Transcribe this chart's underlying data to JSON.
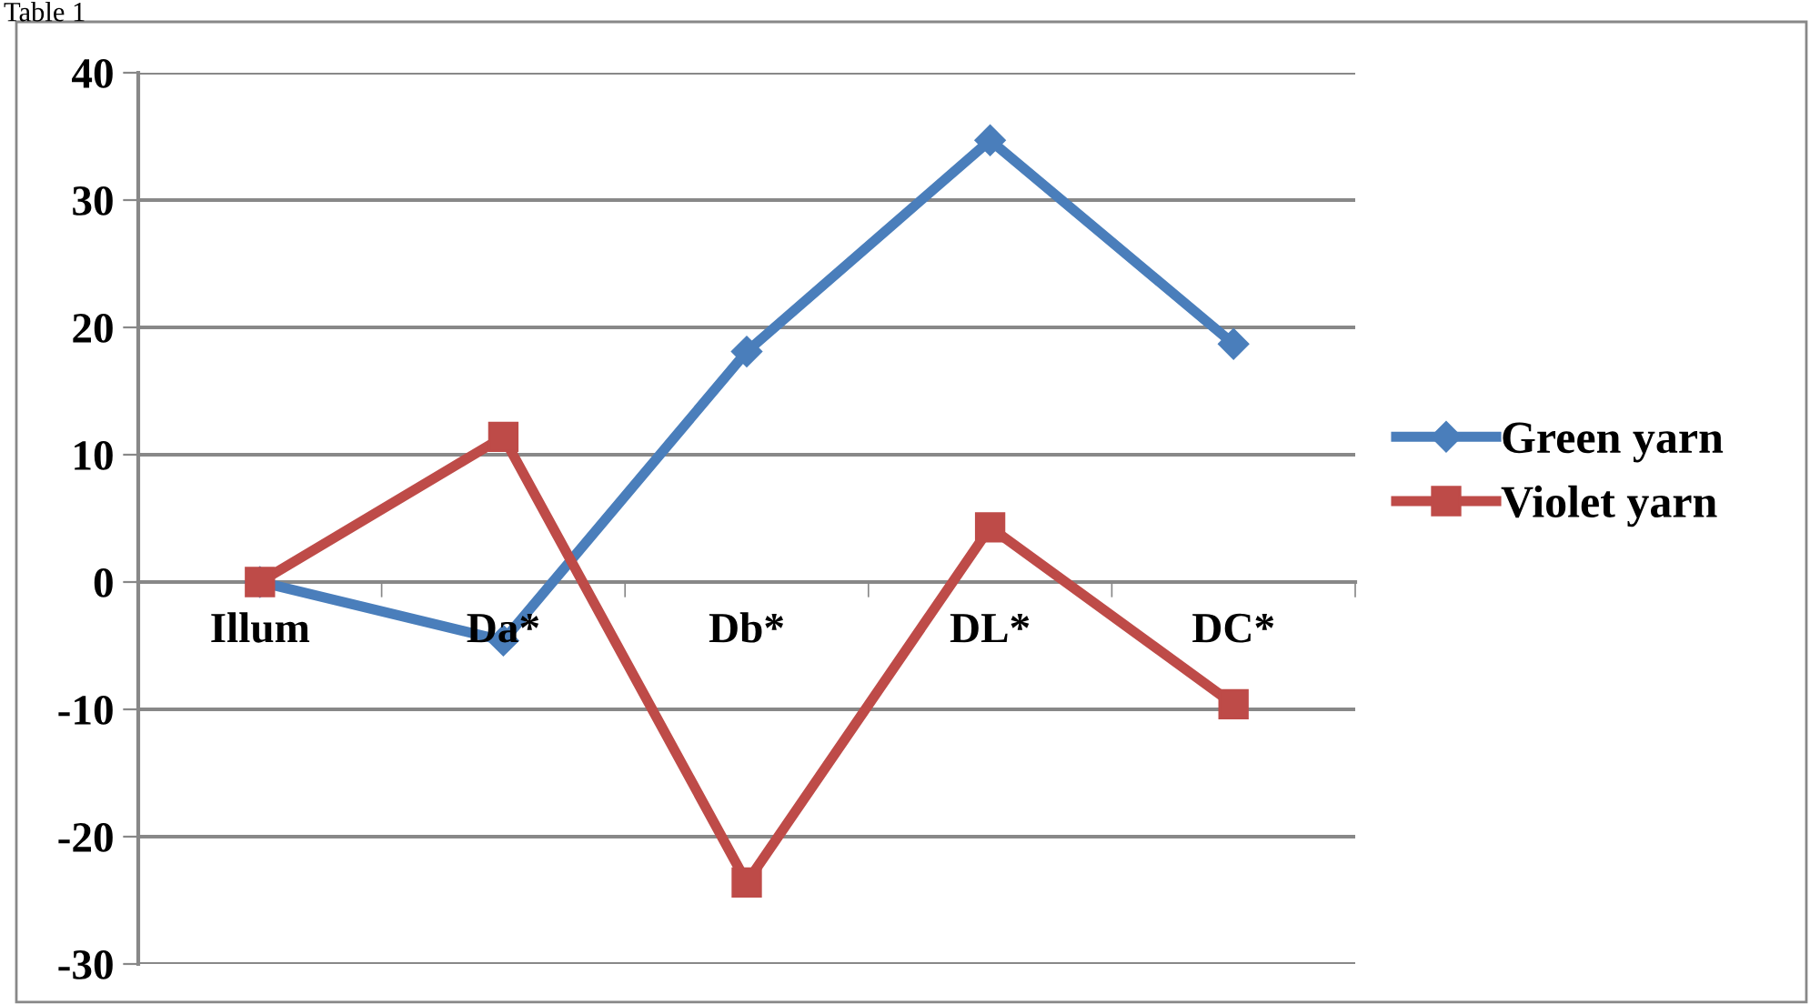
{
  "chart_data": {
    "type": "line",
    "categories": [
      "Illum",
      "Da*",
      "Db*",
      "DL*",
      "DC*"
    ],
    "series": [
      {
        "name": "Green yarn",
        "color": "#4a7ebb",
        "marker": "diamond",
        "values": [
          0,
          -4.6,
          18.1,
          34.7,
          18.7
        ]
      },
      {
        "name": "Violet yarn",
        "color": "#be4b48",
        "marker": "square",
        "values": [
          0,
          11.4,
          -23.6,
          4.3,
          -9.6
        ]
      }
    ],
    "ylim": [
      -30,
      40
    ],
    "yticks": [
      -30,
      -20,
      -10,
      0,
      10,
      20,
      30,
      40
    ],
    "grid": "y",
    "legend": "right",
    "line_style": "solid",
    "annotations": [
      "Table 1"
    ]
  }
}
